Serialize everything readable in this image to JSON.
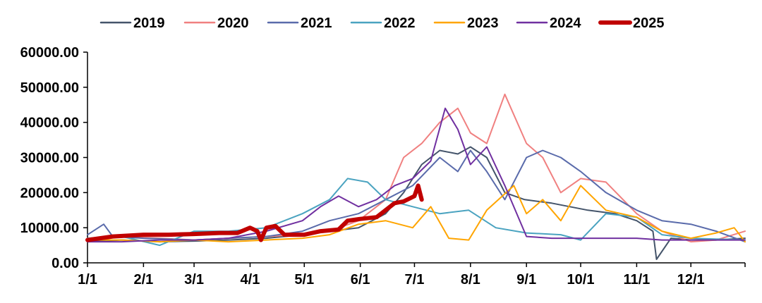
{
  "chart_data": {
    "type": "line",
    "title": "",
    "xlabel": "",
    "ylabel": "",
    "ylim": [
      0,
      60000
    ],
    "xlim": [
      "1/1",
      "12/31"
    ],
    "yticks": [
      "0.00",
      "10000.00",
      "20000.00",
      "30000.00",
      "40000.00",
      "50000.00",
      "60000.00"
    ],
    "xticks": [
      "1/1",
      "2/1",
      "3/1",
      "4/1",
      "5/1",
      "6/1",
      "7/1",
      "8/1",
      "9/1",
      "10/1",
      "11/1",
      "12/1"
    ],
    "legend_position": "top",
    "grid": false,
    "series": [
      {
        "name": "2019",
        "color": "#44546a",
        "width": 2,
        "x": [
          "1/1",
          "1/20",
          "2/10",
          "3/1",
          "3/20",
          "4/10",
          "4/30",
          "5/15",
          "5/31",
          "6/15",
          "6/25",
          "7/5",
          "7/15",
          "7/25",
          "8/1",
          "8/10",
          "8/20",
          "8/31",
          "9/15",
          "9/25",
          "10/5",
          "10/20",
          "11/1",
          "11/10",
          "11/12",
          "11/20",
          "12/1",
          "12/15",
          "12/31"
        ],
        "y": [
          6000,
          6500,
          6000,
          6200,
          6500,
          7000,
          8000,
          9000,
          10000,
          14000,
          20000,
          28000,
          32000,
          31000,
          33000,
          30000,
          20000,
          18000,
          17000,
          16000,
          15000,
          14000,
          12000,
          9000,
          1000,
          7000,
          6500,
          6500,
          7000
        ]
      },
      {
        "name": "2020",
        "color": "#f08080",
        "width": 2,
        "x": [
          "1/1",
          "1/20",
          "2/10",
          "3/1",
          "3/20",
          "4/10",
          "4/30",
          "5/15",
          "5/31",
          "6/15",
          "6/25",
          "7/5",
          "7/15",
          "7/25",
          "8/1",
          "8/10",
          "8/20",
          "9/1",
          "9/10",
          "9/20",
          "10/1",
          "10/15",
          "11/1",
          "11/15",
          "12/1",
          "12/15",
          "12/31"
        ],
        "y": [
          7000,
          7500,
          7000,
          6500,
          7000,
          7500,
          8000,
          9000,
          12000,
          18000,
          30000,
          34000,
          40000,
          44000,
          37000,
          34000,
          48000,
          34000,
          30000,
          20000,
          24000,
          23000,
          14000,
          9000,
          6000,
          6500,
          9000
        ]
      },
      {
        "name": "2021",
        "color": "#5a6bab",
        "width": 2,
        "x": [
          "1/1",
          "1/10",
          "1/15",
          "2/1",
          "3/1",
          "3/20",
          "4/10",
          "4/30",
          "5/15",
          "5/31",
          "6/15",
          "6/30",
          "7/15",
          "7/25",
          "8/1",
          "8/10",
          "8/20",
          "9/1",
          "9/10",
          "9/20",
          "10/1",
          "10/15",
          "11/1",
          "11/15",
          "12/1",
          "12/15",
          "12/31"
        ],
        "y": [
          8000,
          11000,
          7500,
          7000,
          6500,
          7000,
          7500,
          9000,
          12000,
          14000,
          18000,
          22000,
          30000,
          26000,
          32000,
          26000,
          18000,
          30000,
          32000,
          30000,
          26000,
          20000,
          15000,
          12000,
          11000,
          9000,
          6000
        ]
      },
      {
        "name": "2022",
        "color": "#4aa3c0",
        "width": 2,
        "x": [
          "1/1",
          "1/20",
          "2/10",
          "3/1",
          "3/20",
          "4/10",
          "4/30",
          "5/15",
          "5/25",
          "6/5",
          "6/15",
          "6/30",
          "7/15",
          "7/31",
          "8/15",
          "9/1",
          "9/20",
          "10/1",
          "10/15",
          "11/1",
          "11/15",
          "12/1",
          "12/31"
        ],
        "y": [
          7000,
          7500,
          5000,
          9000,
          9000,
          10000,
          14000,
          18000,
          24000,
          23000,
          18000,
          16000,
          14000,
          15000,
          10000,
          8500,
          8000,
          6500,
          14000,
          13000,
          8000,
          7000,
          6500
        ]
      },
      {
        "name": "2023",
        "color": "#ffa500",
        "width": 2,
        "x": [
          "1/1",
          "1/20",
          "2/10",
          "3/1",
          "3/20",
          "4/10",
          "4/30",
          "5/15",
          "5/31",
          "6/15",
          "6/30",
          "7/10",
          "7/20",
          "7/31",
          "8/10",
          "8/25",
          "9/1",
          "9/10",
          "9/20",
          "10/1",
          "10/15",
          "11/1",
          "11/15",
          "12/1",
          "12/15",
          "12/25",
          "12/31"
        ],
        "y": [
          6500,
          6500,
          6000,
          6500,
          6000,
          6500,
          7000,
          8000,
          11000,
          12000,
          10000,
          16000,
          7000,
          6500,
          15000,
          22000,
          14000,
          18000,
          12000,
          22000,
          15000,
          13000,
          9000,
          7000,
          8500,
          10000,
          6000
        ]
      },
      {
        "name": "2024",
        "color": "#7030a0",
        "width": 2,
        "x": [
          "1/1",
          "1/20",
          "2/10",
          "3/1",
          "3/20",
          "4/10",
          "4/30",
          "5/10",
          "5/20",
          "5/31",
          "6/10",
          "6/20",
          "6/30",
          "7/10",
          "7/18",
          "7/25",
          "8/1",
          "8/10",
          "8/20",
          "9/1",
          "9/15",
          "10/1",
          "10/15",
          "11/1",
          "11/15",
          "12/1",
          "12/31"
        ],
        "y": [
          6000,
          6000,
          6500,
          6500,
          7000,
          9000,
          12000,
          16000,
          19000,
          16000,
          18000,
          22000,
          24000,
          29000,
          44000,
          38000,
          28000,
          33000,
          22000,
          7500,
          7000,
          7000,
          7000,
          7000,
          6500,
          6500,
          6500
        ]
      },
      {
        "name": "2025",
        "color": "#c00000",
        "width": 6,
        "x": [
          "1/1",
          "1/15",
          "2/1",
          "2/15",
          "3/1",
          "3/15",
          "3/25",
          "4/1",
          "4/5",
          "4/7",
          "4/10",
          "4/15",
          "4/20",
          "5/1",
          "5/10",
          "5/20",
          "5/25",
          "6/1",
          "6/10",
          "6/15",
          "6/20",
          "6/25",
          "7/1",
          "7/3",
          "7/5"
        ],
        "y": [
          6500,
          7500,
          8000,
          8000,
          8200,
          8500,
          8500,
          10000,
          9000,
          6500,
          10000,
          10500,
          8000,
          8000,
          9000,
          9500,
          12000,
          12500,
          13000,
          15000,
          17000,
          17500,
          19000,
          22000,
          18000
        ]
      }
    ]
  }
}
